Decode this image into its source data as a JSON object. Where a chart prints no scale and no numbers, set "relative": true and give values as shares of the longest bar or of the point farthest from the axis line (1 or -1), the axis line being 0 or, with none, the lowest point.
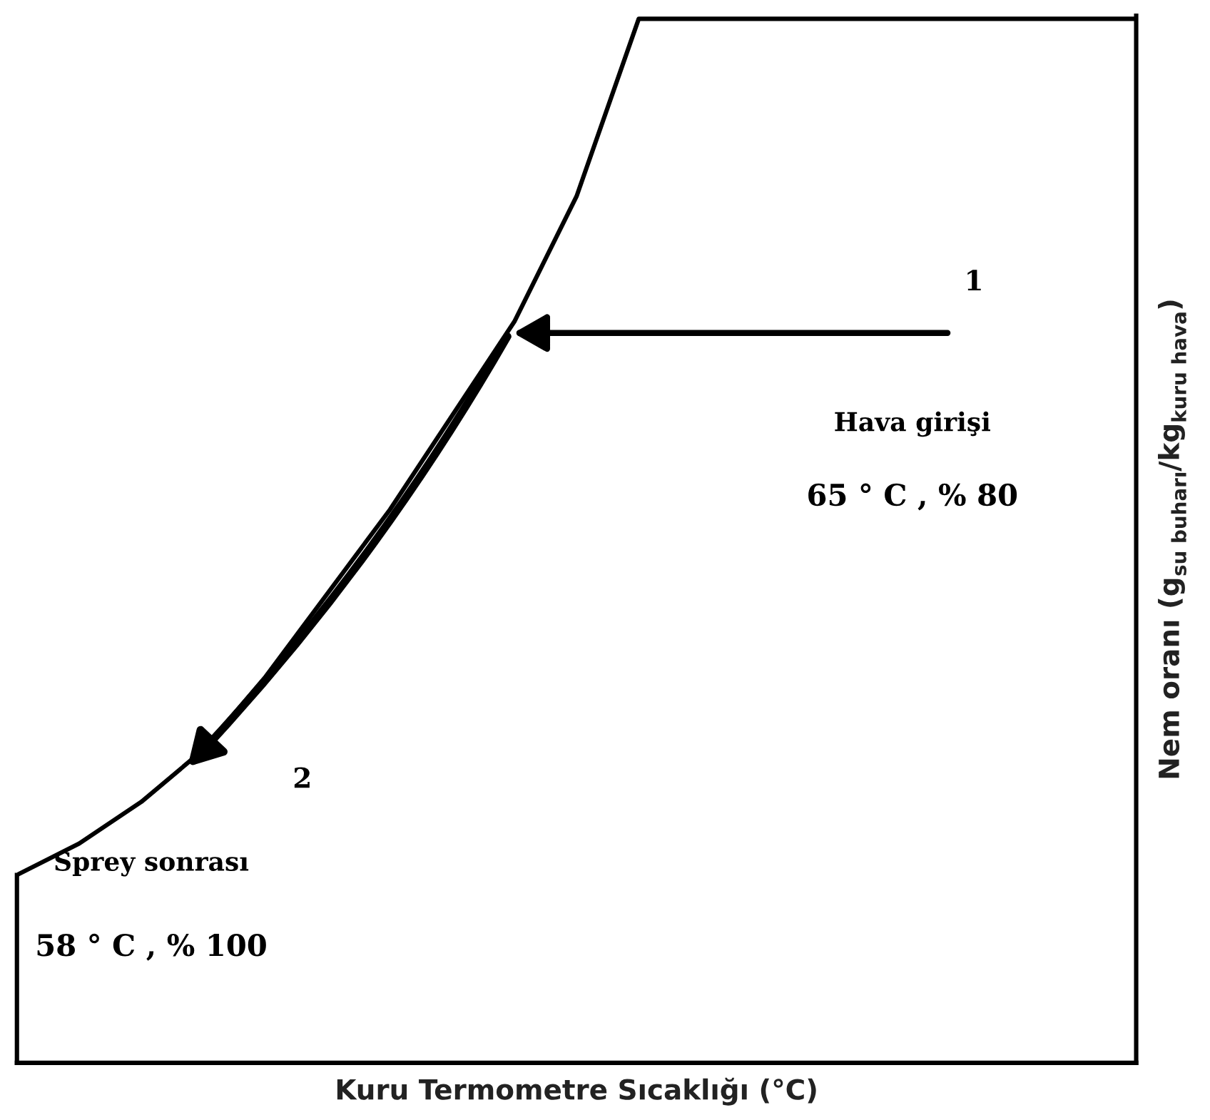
{
  "chart_data": {
    "type": "line",
    "relative": true,
    "categories": [
      null,
      null,
      null,
      null,
      null,
      null,
      null,
      null,
      null,
      null,
      null,
      null,
      null,
      null,
      null,
      null,
      null,
      null,
      null
    ],
    "series": [
      {
        "color": "#000000",
        "values": [
          0.18,
          0.21,
          0.25,
          0.3,
          0.37,
          0.45,
          0.53,
          0.62,
          0.71,
          0.83,
          1,
          1,
          1,
          1,
          1,
          1,
          1,
          1,
          1
        ]
      }
    ],
    "xlabel": "Kuru Termometre Sıcaklığı (°C)",
    "ylabel": "Nem oranı (g$_{su buharı}$/kg$_{kuru hava}$)",
    "annotations": [
      "1",
      "Hava girişi",
      "65 ° C , % 80",
      "2",
      "Sprey sonrası",
      "58 ° C , % 100"
    ],
    "marker": "none",
    "line_style": "solid",
    "grid": false,
    "legend": false
  }
}
